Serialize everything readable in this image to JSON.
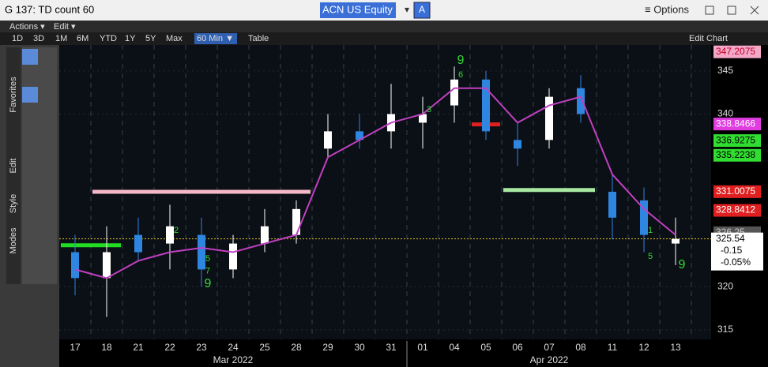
{
  "window_title": "G 137: TD count 60",
  "ticker": "ACN US Equity",
  "ticker_button": "A",
  "options": "≡ Options",
  "menus": [
    "Actions ▾",
    "Edit ▾"
  ],
  "ranges": [
    "1D",
    "3D",
    "1M",
    "6M",
    "YTD",
    "1Y",
    "5Y",
    "Max"
  ],
  "interval": "60 Min ▼",
  "table": "Table",
  "edit_chart": "Edit Chart",
  "side_tabs": [
    "Favorites",
    "Edit",
    "Style",
    "Modes"
  ],
  "chart_data": {
    "type": "candlestick",
    "x": [
      "17",
      "18",
      "21",
      "22",
      "23",
      "24",
      "25",
      "28",
      "29",
      "30",
      "31",
      "01",
      "04",
      "05",
      "06",
      "07",
      "08",
      "11",
      "12",
      "13"
    ],
    "x_groups": [
      {
        "label": "Mar 2022",
        "from": 0,
        "to": 10
      },
      {
        "label": "Apr 2022",
        "from": 11,
        "to": 19
      }
    ],
    "open": [
      324,
      321,
      326,
      325,
      326,
      322,
      325,
      326,
      336,
      338,
      338,
      339,
      341,
      344,
      337,
      337,
      343,
      331,
      330,
      325
    ],
    "high": [
      326,
      327,
      328,
      329.5,
      328,
      326,
      329,
      330,
      340,
      340,
      343.5,
      342,
      345.5,
      345,
      339,
      343,
      344.5,
      333,
      331.5,
      328
    ],
    "low": [
      319,
      316.5,
      323,
      322,
      320,
      321,
      324,
      325,
      335,
      336,
      336,
      336,
      339,
      337,
      334,
      336,
      339,
      325.5,
      324,
      322.5
    ],
    "close": [
      321,
      324,
      324,
      327,
      322,
      325,
      327,
      329,
      338,
      337,
      340,
      340,
      344,
      338,
      336,
      342,
      340,
      328,
      326,
      325.54
    ],
    "up_color": "#ffffff",
    "down_color": "#2f86e0",
    "moving_average": {
      "color": "#c040c0",
      "values": [
        322,
        321,
        323,
        324,
        324.5,
        324,
        325,
        326,
        335,
        337,
        339,
        340,
        343,
        343,
        339,
        341,
        342,
        333,
        329,
        326
      ]
    },
    "levels": [
      {
        "from": 1,
        "to": 7,
        "value": 331,
        "color": "#f7b8c8"
      },
      {
        "from": 0,
        "to": 1,
        "value": 324.8,
        "color": "#22dd22"
      },
      {
        "from": 14,
        "to": 16,
        "value": 331.2,
        "color": "#a8e8a0"
      },
      {
        "from": 13,
        "to": 13,
        "value": 338.8,
        "color": "#e02020"
      }
    ],
    "td_counts": [
      {
        "at": 4,
        "value": 320.3,
        "label": "9"
      },
      {
        "at": 4,
        "value": 321.8,
        "label": "7"
      },
      {
        "at": 4,
        "value": 323.2,
        "label": "5"
      },
      {
        "at": 3,
        "value": 326.5,
        "label": "2"
      },
      {
        "at": 11,
        "value": 340.5,
        "label": "3"
      },
      {
        "at": 12,
        "value": 346.2,
        "label": "9"
      },
      {
        "at": 12,
        "value": 344.5,
        "label": "6"
      },
      {
        "at": 19,
        "value": 322.5,
        "label": "9"
      },
      {
        "at": 18,
        "value": 323.5,
        "label": "5"
      },
      {
        "at": 18,
        "value": 326.5,
        "label": "1"
      }
    ],
    "ylim": [
      313.9,
      348
    ],
    "yticks": [
      315,
      320,
      340,
      345
    ],
    "price_labels": [
      {
        "value": 347.2075,
        "bg": "#f4a8c8",
        "fg": "#c0002a"
      },
      {
        "value": 338.8466,
        "bg": "#e03ce0",
        "fg": "#ffffff"
      },
      {
        "value": 336.9275,
        "bg": "#30dd30",
        "fg": "#000000"
      },
      {
        "value": 335.2238,
        "bg": "#30dd30",
        "fg": "#000000"
      },
      {
        "value": 331.0075,
        "bg": "#e02020",
        "fg": "#ffffff"
      },
      {
        "value": 328.8412,
        "bg": "#e02020",
        "fg": "#ffffff"
      },
      {
        "value": 326.25,
        "bg": "#555555",
        "fg": "#cccccc"
      }
    ],
    "last_price": 325.54,
    "change": [
      "-0.15",
      "-0.05%"
    ]
  }
}
